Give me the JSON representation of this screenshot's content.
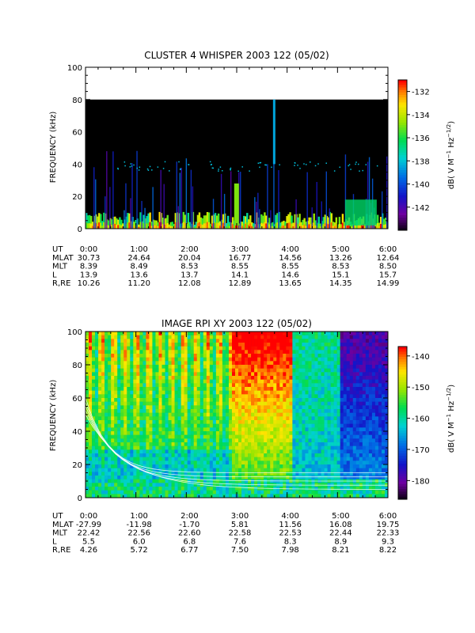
{
  "chart_data": [
    {
      "type": "heatmap",
      "title": "CLUSTER 4 WHISPER 2003 122 (05/02)",
      "ylabel": "FREQUENCY (kHz)",
      "ylim": [
        0,
        100
      ],
      "yticks": [
        "0",
        "20",
        "40",
        "60",
        "80",
        "100"
      ],
      "data_top_khz": 80,
      "x_hours_range": [
        0,
        6
      ],
      "colorbar": {
        "label": "dB( V M^-1 Hz^-1/2 )",
        "range": [
          -144,
          -131
        ],
        "ticks": [
          "-132",
          "-134",
          "-136",
          "-138",
          "-140",
          "-142"
        ],
        "tick_values": [
          -132,
          -134,
          -136,
          -138,
          -140,
          -142
        ]
      },
      "ephemeris": {
        "labels": [
          "UT",
          "MLAT",
          "MLT",
          "L",
          "R,RE"
        ],
        "ut": [
          "0:00",
          "1:00",
          "2:00",
          "3:00",
          "4:00",
          "5:00",
          "6:00"
        ],
        "mlat": [
          "30.73",
          "24.64",
          "20.04",
          "16.77",
          "14.56",
          "13.26",
          "12.64"
        ],
        "mlt": [
          "8.39",
          "8.49",
          "8.53",
          "8.55",
          "8.55",
          "8.53",
          "8.50"
        ],
        "l": [
          "13.9",
          "13.6",
          "13.7",
          "14.1",
          "14.6",
          "15.1",
          "15.7"
        ],
        "r_re": [
          "10.26",
          "11.20",
          "12.08",
          "12.89",
          "13.65",
          "14.35",
          "14.99"
        ]
      }
    },
    {
      "type": "heatmap",
      "title": "IMAGE RPI XY 2003 122 (05/02)",
      "ylabel": "FREQUENCY (kHz)",
      "ylim": [
        0,
        100
      ],
      "yticks": [
        "0",
        "20",
        "40",
        "60",
        "80",
        "100"
      ],
      "data_top_khz": 100,
      "x_hours_range": [
        0,
        6
      ],
      "colorbar": {
        "label": "dB( V M^-1 Hz^-1/2 )",
        "range": [
          -186,
          -137
        ],
        "ticks": [
          "-140",
          "-150",
          "-160",
          "-170",
          "-180"
        ],
        "tick_values": [
          -140,
          -150,
          -160,
          -170,
          -180
        ]
      },
      "ephemeris": {
        "labels": [
          "UT",
          "MLAT",
          "MLT",
          "L",
          "R,RE"
        ],
        "ut": [
          "0:00",
          "1:00",
          "2:00",
          "3:00",
          "4:00",
          "5:00",
          "6:00"
        ],
        "mlat": [
          "-27.99",
          "-11.98",
          "-1.70",
          "5.81",
          "11.56",
          "16.08",
          "19.75"
        ],
        "mlt": [
          "22.42",
          "22.56",
          "22.60",
          "22.58",
          "22.53",
          "22.44",
          "22.33"
        ],
        "l": [
          "5.5",
          "6.0",
          "6.8",
          "7.6",
          "8.3",
          "8.9",
          "9.3"
        ],
        "r_re": [
          "4.26",
          "5.72",
          "6.77",
          "7.50",
          "7.98",
          "8.21",
          "8.22"
        ]
      }
    }
  ]
}
